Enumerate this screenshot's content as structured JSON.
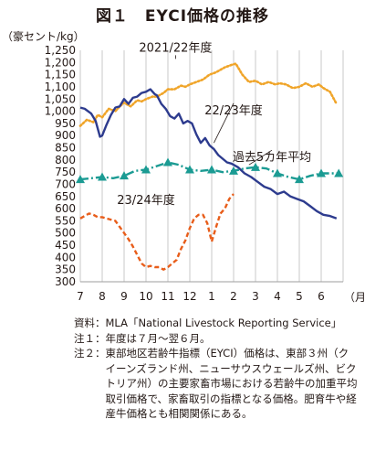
{
  "figure": {
    "title": "図１　EYCI価格の推移"
  },
  "chart_data": {
    "type": "line",
    "ylabel": "（豪セント/kg）",
    "xlabel": "（月）",
    "ylim": [
      300,
      1250
    ],
    "yticks": [
      300,
      350,
      400,
      450,
      500,
      550,
      600,
      650,
      700,
      750,
      800,
      850,
      900,
      950,
      "1,000",
      "1,050",
      "1,100",
      "1,150",
      "1,200",
      "1,250"
    ],
    "x_ticks": [
      "7",
      "8",
      "9",
      "10",
      "11",
      "12",
      "1",
      "2",
      "3",
      "4",
      "5",
      "6"
    ],
    "grid": "vertical",
    "series": [
      {
        "name": "2021/22年度",
        "color": "#f0a52a",
        "style": "dotted",
        "x": [
          7.0,
          7.3,
          7.6,
          7.8,
          8.0,
          8.3,
          8.6,
          8.8,
          9.0,
          9.3,
          9.6,
          9.8,
          10.0,
          10.3,
          10.5,
          10.8,
          11.0,
          11.3,
          11.6,
          11.8,
          12.0,
          12.3,
          12.6,
          12.9,
          13.2,
          13.6,
          13.9,
          14.1,
          14.4,
          14.7,
          15.0,
          15.3,
          15.6,
          15.9,
          16.1,
          16.4,
          16.7,
          17.0,
          17.3,
          17.6,
          17.9,
          18.1,
          18.4,
          18.7
        ],
        "y": [
          940,
          965,
          955,
          985,
          975,
          1010,
          1000,
          1020,
          1035,
          1020,
          1045,
          1040,
          1050,
          1060,
          1060,
          1075,
          1090,
          1090,
          1105,
          1100,
          1110,
          1120,
          1130,
          1150,
          1160,
          1180,
          1190,
          1195,
          1150,
          1120,
          1125,
          1110,
          1120,
          1110,
          1115,
          1110,
          1095,
          1100,
          1115,
          1100,
          1110,
          1095,
          1080,
          1030
        ]
      },
      {
        "name": "22/23年度",
        "color": "#2d3b8e",
        "style": "solid",
        "x": [
          7.0,
          7.2,
          7.5,
          7.7,
          7.9,
          8.0,
          8.2,
          8.4,
          8.6,
          8.8,
          9.0,
          9.2,
          9.4,
          9.6,
          9.8,
          10.0,
          10.2,
          10.4,
          10.5,
          10.7,
          10.9,
          11.1,
          11.3,
          11.5,
          11.7,
          11.9,
          12.1,
          12.3,
          12.5,
          12.7,
          12.9,
          13.1,
          13.3,
          13.5,
          13.7,
          13.9,
          14.2,
          14.5,
          14.8,
          15.1,
          15.4,
          15.7,
          16.0,
          16.3,
          16.6,
          16.9,
          17.2,
          17.5,
          17.8,
          18.1,
          18.4,
          18.7
        ],
        "y": [
          1015,
          1010,
          990,
          960,
          895,
          900,
          945,
          985,
          1015,
          1020,
          1050,
          1030,
          1055,
          1060,
          1075,
          1080,
          1090,
          1070,
          1065,
          1030,
          1010,
          980,
          970,
          990,
          950,
          960,
          950,
          905,
          870,
          890,
          860,
          845,
          820,
          805,
          790,
          785,
          770,
          745,
          730,
          710,
          690,
          680,
          660,
          670,
          650,
          640,
          630,
          610,
          590,
          575,
          570,
          560
        ]
      },
      {
        "name": "過去5カ年平均",
        "color": "#1b9b93",
        "style": "dash-dot",
        "x": [
          7.0,
          7.5,
          8.0,
          8.5,
          9.0,
          9.5,
          10.0,
          10.5,
          11.0,
          11.5,
          12.0,
          12.5,
          13.0,
          13.5,
          14.0,
          14.5,
          15.0,
          15.5,
          16.0,
          16.5,
          17.0,
          17.5,
          18.0,
          18.5,
          18.8
        ],
        "y": [
          720,
          725,
          730,
          725,
          735,
          755,
          760,
          775,
          790,
          780,
          760,
          755,
          760,
          750,
          755,
          765,
          770,
          765,
          745,
          730,
          720,
          735,
          745,
          745,
          745
        ],
        "markers": [
          7.0,
          8.0,
          9.0,
          10.0,
          11.0,
          12.0,
          13.0,
          14.0,
          15.0,
          16.0,
          17.0,
          18.0,
          18.8
        ]
      },
      {
        "name": "23/24年度",
        "color": "#e85d1a",
        "style": "dashed",
        "x": [
          7.0,
          7.2,
          7.4,
          7.6,
          7.8,
          8.0,
          8.2,
          8.4,
          8.6,
          8.8,
          9.0,
          9.2,
          9.4,
          9.6,
          9.8,
          10.0,
          10.2,
          10.4,
          10.6,
          10.8,
          11.0,
          11.2,
          11.4,
          11.6,
          11.8,
          12.0,
          12.2,
          12.4,
          12.6,
          12.8,
          13.0,
          13.2,
          13.4,
          13.6,
          13.8,
          14.0
        ],
        "y": [
          560,
          570,
          580,
          575,
          565,
          565,
          560,
          555,
          550,
          525,
          500,
          475,
          445,
          410,
          375,
          360,
          365,
          360,
          360,
          350,
          360,
          375,
          390,
          435,
          470,
          520,
          560,
          575,
          575,
          540,
          465,
          525,
          580,
          600,
          640,
          660
        ]
      }
    ],
    "annotations": [
      "2021/22年度",
      "22/23年度",
      "過去5カ年平均",
      "23/24年度"
    ]
  },
  "notes": [
    {
      "head": "資料：",
      "text": "MLA「National Livestock Reporting Service」"
    },
    {
      "head": "注１：",
      "text": "年度は７月～翌６月。"
    },
    {
      "head": "注２：",
      "text": "東部地区若齢牛指標（EYCI）価格は、東部３州（クイーンズランド州、ニューサウスウェールズ州、ビクトリア州）の主要家畜市場における若齢牛の加重平均取引価格で、家畜取引の指標となる価格。肥育牛や経産牛価格とも相関関係にある。"
    }
  ]
}
